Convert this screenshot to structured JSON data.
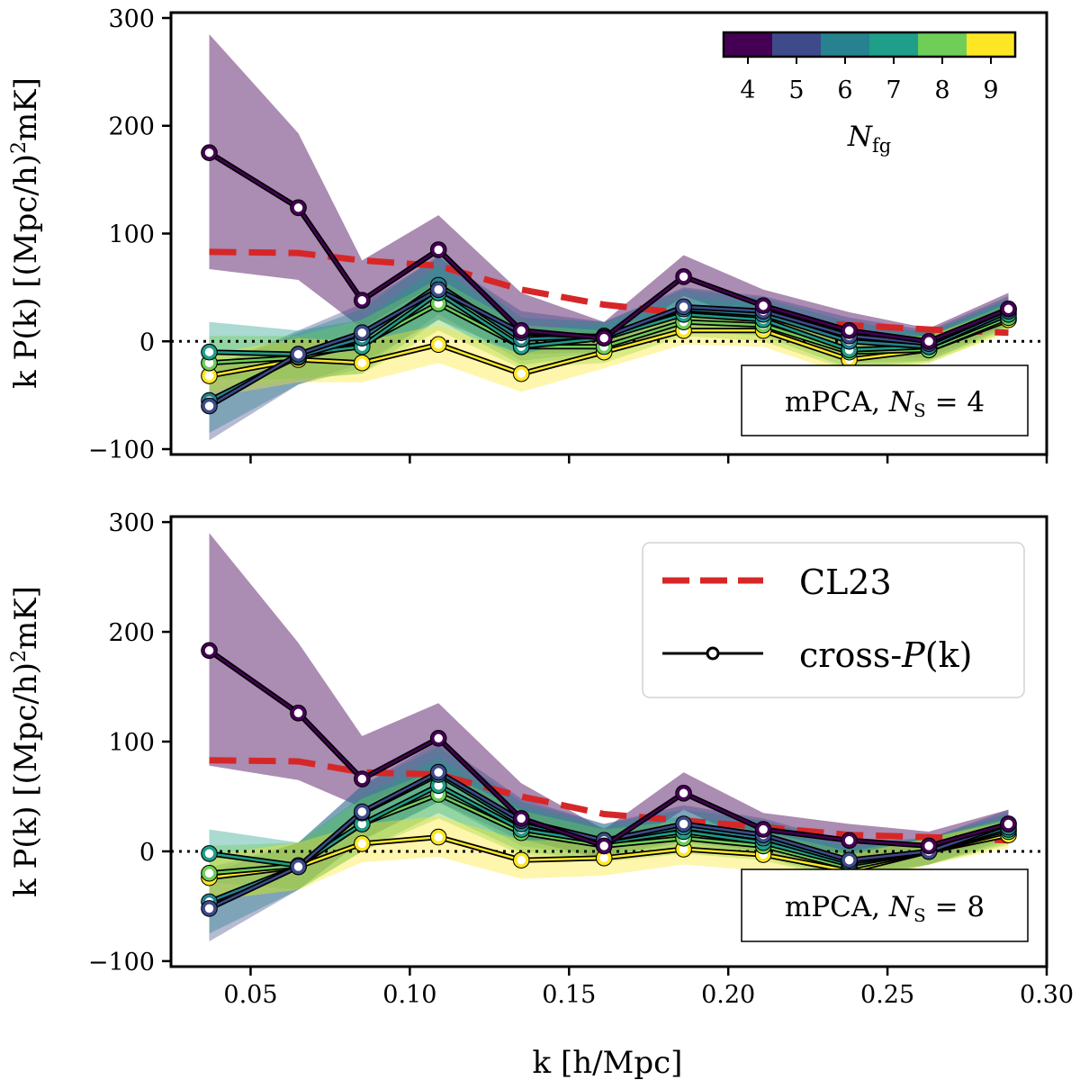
{
  "chart_data": [
    {
      "type": "line",
      "panel": "top",
      "annotation": {
        "prefix": "mPCA, ",
        "symbol": "N",
        "subscript": "S",
        "suffix": " = 4"
      },
      "ylabel": {
        "pre": "k P(k) [(Mpc/h)",
        "sup": "2",
        "post": "mK]"
      },
      "xlim": [
        0.025,
        0.3
      ],
      "ylim": [
        -105,
        305
      ],
      "yticks": [
        -100,
        0,
        100,
        200,
        300
      ],
      "ytick_labels": [
        "−100",
        "0",
        "100",
        "200",
        "300"
      ],
      "zero_line": true,
      "x": [
        0.037,
        0.065,
        0.085,
        0.109,
        0.135,
        0.161,
        0.186,
        0.211,
        0.238,
        0.263,
        0.288
      ],
      "model": {
        "name": "CL23",
        "values": [
          83,
          82,
          75,
          70,
          48,
          34,
          26,
          20,
          15,
          11,
          8
        ]
      },
      "series": [
        {
          "name": "Nfg=4",
          "nfg": 4,
          "color": "#440154",
          "values": [
            175,
            124,
            38,
            85,
            10,
            3,
            60,
            33,
            10,
            0,
            30
          ],
          "lower": [
            67,
            57,
            12,
            55,
            -5,
            -8,
            42,
            17,
            -5,
            -10,
            15
          ],
          "upper": [
            285,
            193,
            75,
            117,
            45,
            18,
            80,
            48,
            27,
            12,
            45
          ]
        },
        {
          "name": "Nfg=5",
          "nfg": 5,
          "color": "#3e4a89",
          "values": [
            -60,
            -12,
            8,
            48,
            8,
            4,
            32,
            28,
            5,
            -2,
            30
          ],
          "lower": [
            -92,
            -40,
            -20,
            20,
            -12,
            -10,
            15,
            12,
            -15,
            -15,
            15
          ],
          "upper": [
            -25,
            10,
            35,
            78,
            28,
            18,
            50,
            42,
            22,
            10,
            42
          ]
        },
        {
          "name": "Nfg=6",
          "nfg": 6,
          "color": "#26828e",
          "values": [
            -55,
            -14,
            3,
            52,
            2,
            5,
            30,
            25,
            0,
            -5,
            28
          ],
          "lower": [
            -85,
            -40,
            -25,
            25,
            -18,
            -10,
            12,
            10,
            -20,
            -18,
            14
          ],
          "upper": [
            -25,
            8,
            30,
            80,
            22,
            18,
            48,
            40,
            18,
            8,
            40
          ]
        },
        {
          "name": "Nfg=7",
          "nfg": 7,
          "color": "#1f9e89",
          "values": [
            -10,
            -12,
            -5,
            45,
            -5,
            3,
            25,
            20,
            -8,
            -5,
            25
          ],
          "lower": [
            -35,
            -35,
            -30,
            20,
            -22,
            -12,
            10,
            5,
            -25,
            -18,
            12
          ],
          "upper": [
            18,
            10,
            20,
            70,
            12,
            16,
            40,
            35,
            10,
            8,
            38
          ]
        },
        {
          "name": "Nfg=8",
          "nfg": 8,
          "color": "#6ece58",
          "values": [
            -20,
            -15,
            -3,
            35,
            -5,
            -5,
            18,
            15,
            -10,
            -8,
            22
          ],
          "lower": [
            -45,
            -35,
            -30,
            10,
            -25,
            -20,
            5,
            0,
            -27,
            -20,
            10
          ],
          "upper": [
            5,
            5,
            20,
            58,
            15,
            10,
            32,
            28,
            8,
            5,
            35
          ]
        },
        {
          "name": "Nfg=9",
          "nfg": 9,
          "color": "#fde725",
          "values": [
            -32,
            -17,
            -20,
            -3,
            -30,
            -10,
            10,
            10,
            -17,
            -8,
            20
          ],
          "lower": [
            -52,
            -38,
            -38,
            -20,
            -47,
            -25,
            -3,
            -5,
            -32,
            -20,
            8
          ],
          "upper": [
            -12,
            3,
            0,
            15,
            -12,
            5,
            25,
            25,
            0,
            5,
            32
          ]
        }
      ]
    },
    {
      "type": "line",
      "panel": "bottom",
      "annotation": {
        "prefix": "mPCA, ",
        "symbol": "N",
        "subscript": "S",
        "suffix": " = 8"
      },
      "ylabel": {
        "pre": "k P(k) [(Mpc/h)",
        "sup": "2",
        "post": "mK]"
      },
      "xlabel": {
        "pre": "k [h/Mpc]"
      },
      "xlim": [
        0.025,
        0.3
      ],
      "ylim": [
        -105,
        305
      ],
      "yticks": [
        -100,
        0,
        100,
        200,
        300
      ],
      "ytick_labels": [
        "−100",
        "0",
        "100",
        "200",
        "300"
      ],
      "xticks": [
        0.05,
        0.1,
        0.15,
        0.2,
        0.25,
        0.3
      ],
      "xtick_labels": [
        "0.05",
        "0.10",
        "0.15",
        "0.20",
        "0.25",
        "0.30"
      ],
      "zero_line": true,
      "x": [
        0.037,
        0.065,
        0.085,
        0.109,
        0.135,
        0.161,
        0.186,
        0.211,
        0.238,
        0.263,
        0.288
      ],
      "model": {
        "name": "CL23",
        "values": [
          83,
          82,
          72,
          70,
          50,
          34,
          28,
          22,
          15,
          13,
          10
        ]
      },
      "series": [
        {
          "name": "Nfg=4",
          "nfg": 4,
          "color": "#440154",
          "values": [
            183,
            126,
            66,
            103,
            30,
            5,
            53,
            20,
            10,
            5,
            25
          ],
          "lower": [
            78,
            65,
            40,
            75,
            12,
            -8,
            38,
            5,
            -5,
            -5,
            12
          ],
          "upper": [
            290,
            190,
            105,
            135,
            62,
            20,
            72,
            35,
            25,
            18,
            38
          ]
        },
        {
          "name": "Nfg=5",
          "nfg": 5,
          "color": "#3e4a89",
          "values": [
            -52,
            -14,
            36,
            72,
            28,
            10,
            25,
            15,
            -8,
            0,
            25
          ],
          "lower": [
            -82,
            -35,
            10,
            45,
            10,
            -5,
            10,
            0,
            -22,
            -12,
            12
          ],
          "upper": [
            -20,
            8,
            60,
            100,
            48,
            25,
            42,
            30,
            8,
            12,
            38
          ]
        },
        {
          "name": "Nfg=6",
          "nfg": 6,
          "color": "#26828e",
          "values": [
            -46,
            -14,
            35,
            70,
            25,
            10,
            22,
            12,
            -10,
            0,
            22
          ],
          "lower": [
            -75,
            -35,
            10,
            45,
            5,
            -5,
            8,
            -2,
            -25,
            -12,
            10
          ],
          "upper": [
            -15,
            8,
            60,
            95,
            45,
            25,
            38,
            28,
            5,
            12,
            35
          ]
        },
        {
          "name": "Nfg=7",
          "nfg": 7,
          "color": "#1f9e89",
          "values": [
            -2,
            -13,
            25,
            60,
            20,
            8,
            18,
            8,
            -12,
            0,
            20
          ],
          "lower": [
            -28,
            -35,
            0,
            35,
            0,
            -8,
            3,
            -5,
            -27,
            -12,
            8
          ],
          "upper": [
            20,
            8,
            50,
            85,
            40,
            22,
            32,
            22,
            3,
            12,
            32
          ]
        },
        {
          "name": "Nfg=8",
          "nfg": 8,
          "color": "#6ece58",
          "values": [
            -20,
            -13,
            25,
            52,
            17,
            5,
            12,
            5,
            -15,
            0,
            18
          ],
          "lower": [
            -45,
            -35,
            0,
            30,
            -3,
            -10,
            -2,
            -8,
            -28,
            -12,
            6
          ],
          "upper": [
            5,
            8,
            48,
            75,
            37,
            20,
            28,
            18,
            0,
            12,
            30
          ]
        },
        {
          "name": "Nfg=9",
          "nfg": 9,
          "color": "#fde725",
          "values": [
            -24,
            -14,
            7,
            13,
            -8,
            -6,
            2,
            -3,
            -18,
            0,
            15
          ],
          "lower": [
            -45,
            -35,
            -10,
            -5,
            -25,
            -22,
            -12,
            -18,
            -32,
            -12,
            3
          ],
          "upper": [
            -3,
            8,
            25,
            32,
            10,
            10,
            18,
            12,
            -3,
            12,
            28
          ]
        }
      ]
    }
  ],
  "legend": {
    "model_label": "CL23",
    "data_label_pre": "cross-",
    "data_label_sym": "P",
    "data_label_post": "(k)"
  },
  "colorbar": {
    "label_symbol": "N",
    "label_subscript": "fg",
    "ticks": [
      "4",
      "5",
      "6",
      "7",
      "8",
      "9"
    ],
    "colors": [
      "#440154",
      "#3e4a89",
      "#26828e",
      "#1f9e89",
      "#6ece58",
      "#fde725"
    ]
  },
  "style": {
    "model_color": "#d62728",
    "zero_line_color": "#000000"
  }
}
